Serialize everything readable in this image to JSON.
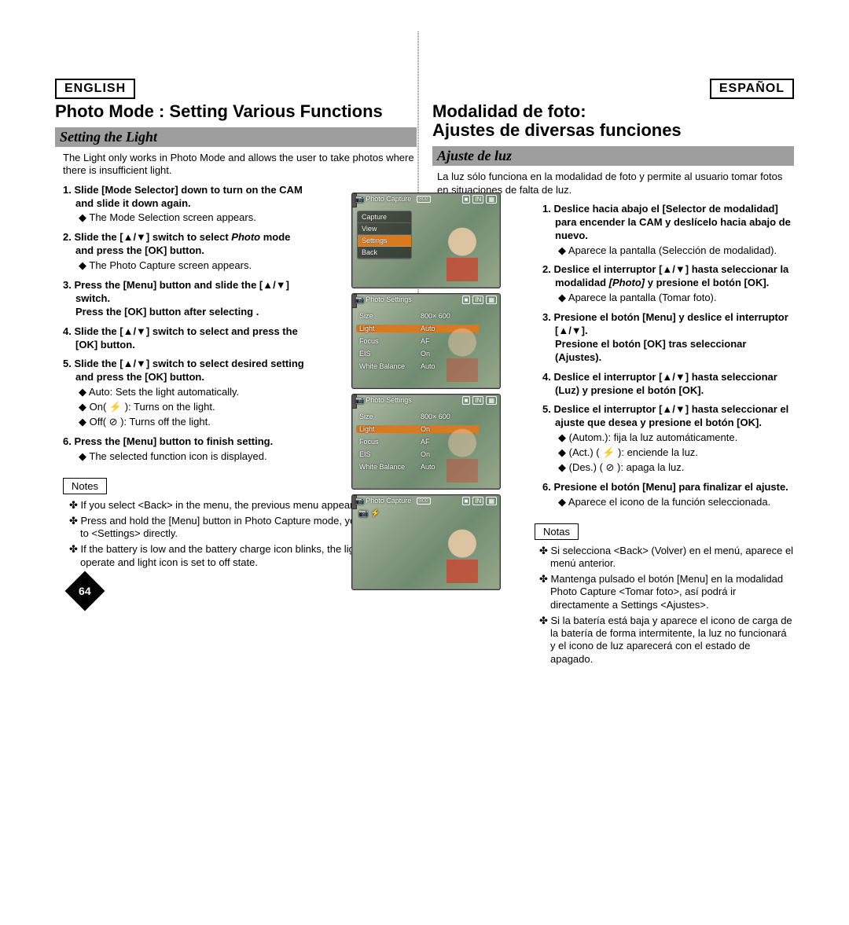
{
  "page_number": "64",
  "left": {
    "lang": "ENGLISH",
    "title": "Photo Mode : Setting Various Functions",
    "subtitle": "Setting the Light",
    "intro": "The Light only works in Photo Mode and allows the user to take photos where there is insufficient light.",
    "steps": [
      {
        "n": "1.",
        "bold": "Slide [Mode Selector] down to turn on the CAM and slide it down again.",
        "subs": [
          "◆ The Mode Selection screen appears."
        ]
      },
      {
        "n": "2.",
        "bold": "Slide the [▲/▼] switch to select ",
        "ital": "Photo",
        "bold2": " mode and press the [OK] button.",
        "subs": [
          "◆ The Photo Capture screen appears."
        ]
      },
      {
        "n": "3.",
        "bold": "Press the [Menu] button and slide the [▲/▼] switch.",
        "extra": "Press the [OK] button after selecting <Settings>."
      },
      {
        "n": "4.",
        "bold": "Slide the [▲/▼] switch to select <Light> and press the [OK] button."
      },
      {
        "n": "5.",
        "bold": "Slide the [▲/▼] switch to select desired setting and press the [OK] button.",
        "subs": [
          "◆ Auto: Sets the light automatically.",
          "◆ On( ⚡ ): Turns on the light.",
          "◆ Off( ⊘ ): Turns off the light."
        ]
      },
      {
        "n": "6.",
        "bold": "Press the [Menu] button to finish setting.",
        "subs": [
          "◆ The selected function icon is displayed."
        ]
      }
    ],
    "notes_label": "Notes",
    "notes": [
      "✤ If you select <Back> in the menu, the previous menu appears.",
      "✤ Press and hold the [Menu] button in Photo Capture mode, you can move to <Settings> directly.",
      "✤ If the battery is low and the battery charge icon blinks, the light will not operate and light icon is set to off state."
    ]
  },
  "right": {
    "lang": "ESPAÑOL",
    "title_l1": "Modalidad de foto:",
    "title_l2": "Ajustes de diversas funciones",
    "subtitle": "Ajuste de luz",
    "intro": "La luz sólo funciona en la modalidad de foto y permite al usuario tomar fotos en situaciones de falta de luz.",
    "steps": [
      {
        "n": "1.",
        "bold": "Deslice hacia abajo el [Selector de modalidad] para encender la CAM y deslícelo hacia abajo de nuevo.",
        "subs": [
          "◆ Aparece la pantalla <Mode Selection> (Selección de modalidad)."
        ]
      },
      {
        "n": "2.",
        "bold": "Deslice el interruptor [▲/▼] hasta seleccionar la modalidad ",
        "ital": "[Photo]",
        "bold2": " y presione el botón [OK].",
        "subs": [
          "◆ Aparece la pantalla <Photo Capture> (Tomar foto)."
        ]
      },
      {
        "n": "3.",
        "bold": "Presione el botón [Menu] y deslice el interruptor [▲/▼].",
        "extra": "Presione el botón [OK] tras seleccionar <Settings> (Ajustes)."
      },
      {
        "n": "4.",
        "bold": "Deslice el interruptor [▲/▼] hasta seleccionar <Light> (Luz) y presione el botón [OK]."
      },
      {
        "n": "5.",
        "bold": "Deslice el interruptor [▲/▼] hasta seleccionar el ajuste que desea y presione el botón [OK].",
        "subs": [
          "◆ <Auto> (Autom.): fija la luz automáticamente.",
          "◆ <On> (Act.) ( ⚡ ): enciende la luz.",
          "◆ <Off> (Des.) ( ⊘ ): apaga la luz."
        ]
      },
      {
        "n": "6.",
        "bold": "Presione el botón [Menu] para finalizar el ajuste.",
        "subs": [
          "◆ Aparece el icono de la función seleccionada."
        ]
      }
    ],
    "notes_label": "Notas",
    "notes": [
      "✤ Si selecciona <Back> (Volver) en el menú, aparece el menú anterior.",
      "✤ Mantenga pulsado el botón [Menu] en la modalidad Photo Capture <Tomar foto>, así podrá ir directamente a Settings <Ajustes>.",
      "✤ Si la batería está baja y aparece el icono de carga de la batería de forma intermitente, la luz no funcionará y el icono de luz aparecerá con el estado de apagado."
    ]
  },
  "figs": {
    "f3": {
      "num": "3",
      "title": "Photo Capture",
      "res": "800",
      "menu": [
        "Capture",
        "View",
        "Settings",
        "Back"
      ],
      "sel": 2
    },
    "f4": {
      "num": "4",
      "title": "Photo Settings",
      "rows": [
        [
          "Size",
          "800× 600"
        ],
        [
          "Light",
          "Auto"
        ],
        [
          "Focus",
          "AF"
        ],
        [
          "EIS",
          "On"
        ],
        [
          "White Balance",
          "Auto"
        ]
      ],
      "hl": 1
    },
    "f5": {
      "num": "5",
      "title": "Photo Settings",
      "rows": [
        [
          "Size",
          "800× 600"
        ],
        [
          "Light",
          "On"
        ],
        [
          "Focus",
          "AF"
        ],
        [
          "EIS",
          "On"
        ],
        [
          "White Balance",
          "Auto"
        ]
      ],
      "hl": 1
    },
    "f6": {
      "num": "6",
      "title": "Photo Capture",
      "res": "800"
    }
  }
}
